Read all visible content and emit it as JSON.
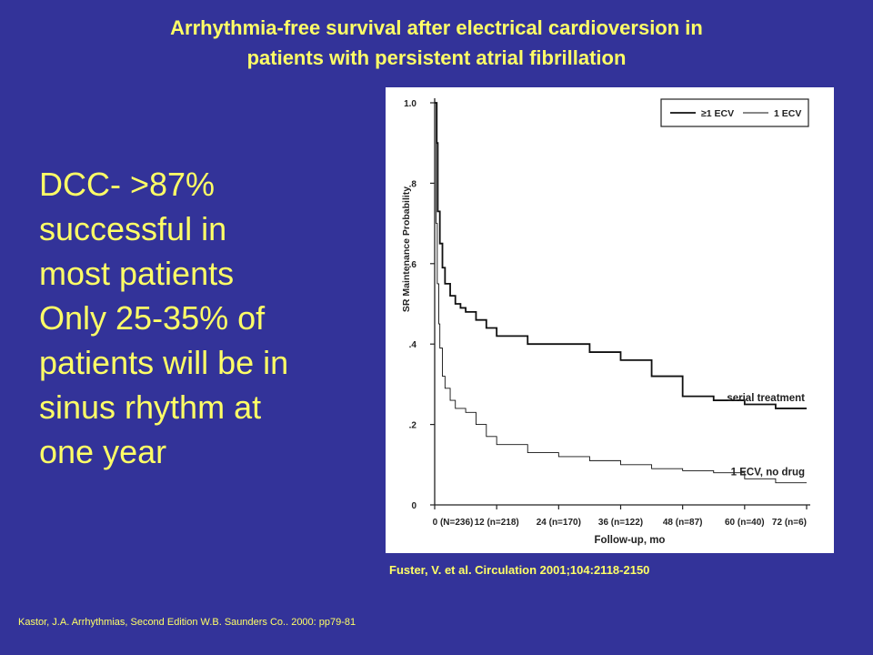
{
  "slide": {
    "title_lines": [
      "Arrhythmia-free survival after electrical cardioversion in",
      "patients with persistent atrial fibrillation"
    ],
    "bullet_lines": [
      "DCC- >87%",
      "successful in",
      "most patients",
      "Only 25-35% of",
      "patients will be in",
      "sinus rhythm at",
      "one year"
    ],
    "citation": "Fuster, V. et al. Circulation 2001;104:2118-2150",
    "source": "Kastor, J.A. Arrhythmias, Second Edition W.B. Saunders Co.. 2000: pp79-81",
    "text_color": "#ffff66",
    "background_color": "#333399"
  },
  "chart_data": {
    "type": "line",
    "ylabel": "SR Maintenance Probability",
    "xlabel": "Follow-up, mo",
    "xlim": [
      0,
      72
    ],
    "ylim": [
      0,
      1.0
    ],
    "y_ticks": [
      {
        "value": 0,
        "label": "0"
      },
      {
        "value": 0.2,
        "label": ".2"
      },
      {
        "value": 0.4,
        "label": ".4"
      },
      {
        "value": 0.6,
        "label": ".6"
      },
      {
        "value": 0.8,
        "label": ".8"
      },
      {
        "value": 1.0,
        "label": "1.0"
      }
    ],
    "x_ticks": [
      {
        "value": 0,
        "label": "0 (N=236)"
      },
      {
        "value": 12,
        "label": "12 (n=218)"
      },
      {
        "value": 24,
        "label": "24 (n=170)"
      },
      {
        "value": 36,
        "label": "36 (n=122)"
      },
      {
        "value": 48,
        "label": "48 (n=87)"
      },
      {
        "value": 60,
        "label": "60 (n=40)"
      },
      {
        "value": 72,
        "label": "72 (n=6)"
      }
    ],
    "legend": {
      "position": "top-right",
      "entries": [
        {
          "label": "≥1 ECV",
          "style": "thick"
        },
        {
          "label": "1 ECV",
          "style": "thin"
        }
      ]
    },
    "series": [
      {
        "name": "≥1 ECV",
        "style": "thick",
        "annotation": "serial treatment",
        "x": [
          0,
          0.4,
          0.6,
          1,
          1.5,
          2,
          3,
          4,
          5,
          6,
          8,
          10,
          12,
          18,
          24,
          30,
          36,
          42,
          48,
          54,
          60,
          66,
          72
        ],
        "y": [
          1.0,
          0.9,
          0.73,
          0.65,
          0.59,
          0.55,
          0.52,
          0.5,
          0.49,
          0.48,
          0.46,
          0.44,
          0.42,
          0.4,
          0.4,
          0.38,
          0.36,
          0.32,
          0.27,
          0.26,
          0.25,
          0.24,
          0.24
        ]
      },
      {
        "name": "1 ECV",
        "style": "thin",
        "annotation": "1 ECV, no drug",
        "x": [
          0,
          0.3,
          0.5,
          0.8,
          1,
          1.5,
          2,
          3,
          4,
          6,
          8,
          10,
          12,
          18,
          24,
          30,
          36,
          42,
          48,
          54,
          60,
          66,
          72
        ],
        "y": [
          1.0,
          0.7,
          0.55,
          0.45,
          0.39,
          0.32,
          0.29,
          0.26,
          0.24,
          0.23,
          0.2,
          0.17,
          0.15,
          0.13,
          0.12,
          0.11,
          0.1,
          0.09,
          0.085,
          0.08,
          0.065,
          0.055,
          0.055
        ]
      }
    ]
  }
}
